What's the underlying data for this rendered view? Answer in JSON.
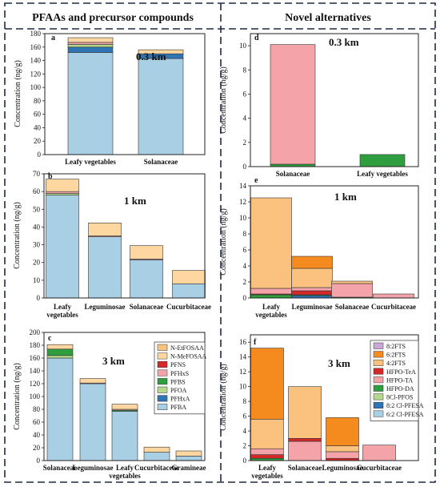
{
  "headers": {
    "left": "PFAAs and precursor compounds",
    "right": "Novel alternatives"
  },
  "legends": {
    "c": [
      {
        "name": "N-EtFOSAA",
        "color": "#f9c480"
      },
      {
        "name": "N-MeFOSAA",
        "color": "#fdd6a0"
      },
      {
        "name": "PFNS",
        "color": "#d62828"
      },
      {
        "name": "PFHxS",
        "color": "#f4a3a8"
      },
      {
        "name": "PFBS",
        "color": "#2e9e3e"
      },
      {
        "name": "PFOA",
        "color": "#b5d98c"
      },
      {
        "name": "PFHxA",
        "color": "#2f74b5"
      },
      {
        "name": "PFBA",
        "color": "#a8cfe4"
      }
    ],
    "f": [
      {
        "name": "8:2FTS",
        "color": "#c9a8d8"
      },
      {
        "name": "6:2FTS",
        "color": "#f58a1f"
      },
      {
        "name": "4:2FTS",
        "color": "#fbc27f"
      },
      {
        "name": "HFPO-TeA",
        "color": "#d62828"
      },
      {
        "name": "HFPO-TA",
        "color": "#f4a3a8"
      },
      {
        "name": "HFPO-DA",
        "color": "#2e9e3e"
      },
      {
        "name": "8Cl-PFOS",
        "color": "#b5d98c"
      },
      {
        "name": "8:2 Cl-PFESA",
        "color": "#2f74b5"
      },
      {
        "name": "6:2 Cl-PFESA",
        "color": "#a8cfe4"
      }
    ]
  },
  "chart_data": [
    {
      "id": "a",
      "type": "bar",
      "panel_label": "a",
      "annotation": "0.3 km",
      "ylabel": "Concentration (ng/g)",
      "ylim": [
        0,
        180
      ],
      "yticks": [
        0,
        20,
        40,
        60,
        80,
        100,
        120,
        140,
        160,
        180
      ],
      "categories": [
        [
          "Leafy vegetables"
        ],
        [
          "Solanaceae"
        ]
      ],
      "stacks": [
        [
          {
            "name": "PFBA",
            "value": 152,
            "color": "#a8cfe4"
          },
          {
            "name": "PFHxA",
            "value": 8,
            "color": "#2f74b5"
          },
          {
            "name": "PFOA",
            "value": 4,
            "color": "#b5d98c"
          },
          {
            "name": "PFHxS",
            "value": 3,
            "color": "#f4a3a8"
          },
          {
            "name": "N-MeFOSAA",
            "value": 7,
            "color": "#fdd6a0"
          }
        ],
        [
          {
            "name": "PFBA",
            "value": 143,
            "color": "#a8cfe4"
          },
          {
            "name": "PFHxA",
            "value": 7,
            "color": "#2f74b5"
          },
          {
            "name": "N-MeFOSAA",
            "value": 6,
            "color": "#fdd6a0"
          }
        ]
      ]
    },
    {
      "id": "b",
      "type": "bar",
      "panel_label": "b",
      "annotation": "1 km",
      "ylabel": "Concentration (ng/g)",
      "ylim": [
        0,
        70
      ],
      "yticks": [
        0,
        10,
        20,
        30,
        40,
        50,
        60,
        70
      ],
      "categories": [
        [
          "Leafy",
          "vegetables"
        ],
        [
          "Leguminosae"
        ],
        [
          "Solanaceae"
        ],
        [
          "Cucurbitaceae"
        ]
      ],
      "stacks": [
        [
          {
            "name": "PFBA",
            "value": 58,
            "color": "#a8cfe4"
          },
          {
            "name": "PFOA",
            "value": 1,
            "color": "#b5d98c"
          },
          {
            "name": "PFHxS",
            "value": 1,
            "color": "#f4a3a8"
          },
          {
            "name": "N-MeFOSAA",
            "value": 7,
            "color": "#fdd6a0"
          }
        ],
        [
          {
            "name": "PFBA",
            "value": 34.5,
            "color": "#a8cfe4"
          },
          {
            "name": "PFHxS",
            "value": 0.5,
            "color": "#f4a3a8"
          },
          {
            "name": "N-MeFOSAA",
            "value": 7.3,
            "color": "#fdd6a0"
          }
        ],
        [
          {
            "name": "PFBA",
            "value": 21.5,
            "color": "#a8cfe4"
          },
          {
            "name": "PFHxS",
            "value": 0.5,
            "color": "#f4a3a8"
          },
          {
            "name": "N-MeFOSAA",
            "value": 7.5,
            "color": "#fdd6a0"
          }
        ],
        [
          {
            "name": "PFBA",
            "value": 8,
            "color": "#a8cfe4"
          },
          {
            "name": "N-MeFOSAA",
            "value": 7.5,
            "color": "#fdd6a0"
          }
        ]
      ]
    },
    {
      "id": "c",
      "type": "bar",
      "panel_label": "c",
      "annotation": "3 km",
      "ylabel": "Concentration (ng/g)",
      "ylim": [
        0,
        200
      ],
      "yticks": [
        0,
        20,
        40,
        60,
        80,
        100,
        120,
        140,
        160,
        180,
        200
      ],
      "categories": [
        [
          "Solanaceae"
        ],
        [
          "Leguminosae"
        ],
        [
          "Leafy",
          "vegetables"
        ],
        [
          "Cucurbitaceae"
        ],
        [
          "Gramineae"
        ]
      ],
      "stacks": [
        [
          {
            "name": "PFBA",
            "value": 160,
            "color": "#a8cfe4"
          },
          {
            "name": "PFOA",
            "value": 4,
            "color": "#b5d98c"
          },
          {
            "name": "PFBS",
            "value": 10,
            "color": "#2e9e3e"
          },
          {
            "name": "N-MeFOSAA",
            "value": 7,
            "color": "#fdd6a0"
          }
        ],
        [
          {
            "name": "PFBA",
            "value": 120,
            "color": "#a8cfe4"
          },
          {
            "name": "PFHxS",
            "value": 1,
            "color": "#f4a3a8"
          },
          {
            "name": "N-MeFOSAA",
            "value": 7,
            "color": "#fdd6a0"
          }
        ],
        [
          {
            "name": "PFBA",
            "value": 77,
            "color": "#a8cfe4"
          },
          {
            "name": "PFBS",
            "value": 1.5,
            "color": "#2e9e3e"
          },
          {
            "name": "PFHxS",
            "value": 1.5,
            "color": "#f4a3a8"
          },
          {
            "name": "N-MeFOSAA",
            "value": 8,
            "color": "#fdd6a0"
          }
        ],
        [
          {
            "name": "PFBA",
            "value": 13,
            "color": "#a8cfe4"
          },
          {
            "name": "N-MeFOSAA",
            "value": 8,
            "color": "#fdd6a0"
          }
        ],
        [
          {
            "name": "PFBA",
            "value": 7,
            "color": "#a8cfe4"
          },
          {
            "name": "N-MeFOSAA",
            "value": 8,
            "color": "#fdd6a0"
          }
        ]
      ]
    },
    {
      "id": "d",
      "type": "bar",
      "panel_label": "d",
      "annotation": "0.3 km",
      "ylabel": "Concentration (ng/g)",
      "ylim": [
        0,
        11
      ],
      "yticks": [
        0,
        2,
        4,
        6,
        8,
        10
      ],
      "categories": [
        [
          "Solanaceae"
        ],
        [
          "Leafy vegetables"
        ]
      ],
      "stacks": [
        [
          {
            "name": "HFPO-DA",
            "value": 0.2,
            "color": "#2e9e3e"
          },
          {
            "name": "HFPO-TA",
            "value": 9.9,
            "color": "#f4a3a8"
          }
        ],
        [
          {
            "name": "HFPO-DA",
            "value": 1.0,
            "color": "#2e9e3e"
          }
        ]
      ]
    },
    {
      "id": "e",
      "type": "bar",
      "panel_label": "e",
      "annotation": "1 km",
      "ylabel": "Concentration (ng/g)",
      "ylim": [
        0,
        14
      ],
      "yticks": [
        0,
        2,
        4,
        6,
        8,
        10,
        12,
        14
      ],
      "categories": [
        [
          "Leafy",
          "vegetables"
        ],
        [
          "Leguminosae"
        ],
        [
          "Solanaceae"
        ],
        [
          "Cucurbitaceae"
        ]
      ],
      "stacks": [
        [
          {
            "name": "HFPO-DA",
            "value": 0.4,
            "color": "#2e9e3e"
          },
          {
            "name": "HFPO-TeA",
            "value": 0.1,
            "color": "#d62828"
          },
          {
            "name": "HFPO-TA",
            "value": 0.7,
            "color": "#f4a3a8"
          },
          {
            "name": "4:2FTS",
            "value": 11.3,
            "color": "#fbc27f"
          }
        ],
        [
          {
            "name": "8:2 Cl-PFESA",
            "value": 0.3,
            "color": "#2f74b5"
          },
          {
            "name": "HFPO-DA",
            "value": 0.1,
            "color": "#2e9e3e"
          },
          {
            "name": "HFPO-TeA",
            "value": 0.5,
            "color": "#d62828"
          },
          {
            "name": "HFPO-TA",
            "value": 0.4,
            "color": "#f4a3a8"
          },
          {
            "name": "4:2FTS",
            "value": 2.4,
            "color": "#fbc27f"
          },
          {
            "name": "6:2FTS",
            "value": 1.5,
            "color": "#f58a1f"
          }
        ],
        [
          {
            "name": "HFPO-DA",
            "value": 0.1,
            "color": "#2e9e3e"
          },
          {
            "name": "HFPO-TA",
            "value": 1.7,
            "color": "#f4a3a8"
          },
          {
            "name": "4:2FTS",
            "value": 0.3,
            "color": "#fbc27f"
          }
        ],
        [
          {
            "name": "HFPO-TA",
            "value": 0.5,
            "color": "#f4a3a8"
          }
        ]
      ]
    },
    {
      "id": "f",
      "type": "bar",
      "panel_label": "f",
      "annotation": "3 km",
      "ylabel": "Concentration (ng/g)",
      "ylim": [
        0,
        17
      ],
      "yticks": [
        0,
        2,
        4,
        6,
        8,
        10,
        12,
        14,
        16
      ],
      "categories": [
        [
          "Leafy",
          "vegetables"
        ],
        [
          "Solanaceae"
        ],
        [
          "Leguminosae"
        ],
        [
          "Cucurbitaceae"
        ]
      ],
      "stacks": [
        [
          {
            "name": "HFPO-DA",
            "value": 0.3,
            "color": "#2e9e3e"
          },
          {
            "name": "HFPO-TeA",
            "value": 0.5,
            "color": "#d62828"
          },
          {
            "name": "HFPO-TA",
            "value": 0.8,
            "color": "#f4a3a8"
          },
          {
            "name": "4:2FTS",
            "value": 4.0,
            "color": "#fbc27f"
          },
          {
            "name": "6:2FTS",
            "value": 9.6,
            "color": "#f58a1f"
          }
        ],
        [
          {
            "name": "HFPO-TA",
            "value": 2.6,
            "color": "#f4a3a8"
          },
          {
            "name": "HFPO-TeA",
            "value": 0.4,
            "color": "#d62828"
          },
          {
            "name": "4:2FTS",
            "value": 7.0,
            "color": "#fbc27f"
          }
        ],
        [
          {
            "name": "HFPO-TeA",
            "value": 0.3,
            "color": "#d62828"
          },
          {
            "name": "HFPO-TA",
            "value": 0.9,
            "color": "#f4a3a8"
          },
          {
            "name": "4:2FTS",
            "value": 0.8,
            "color": "#fbc27f"
          },
          {
            "name": "6:2FTS",
            "value": 3.8,
            "color": "#f58a1f"
          }
        ],
        [
          {
            "name": "HFPO-TA",
            "value": 2.1,
            "color": "#f4a3a8"
          }
        ]
      ]
    }
  ]
}
